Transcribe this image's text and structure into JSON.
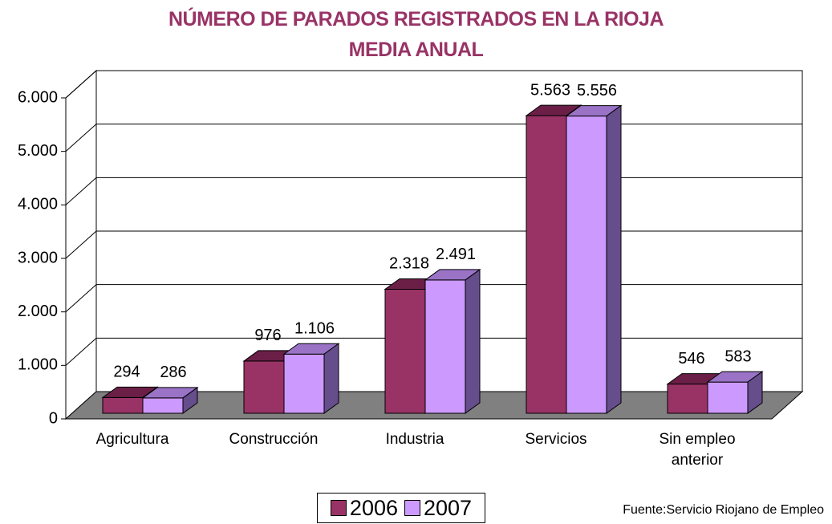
{
  "chart_data": {
    "type": "bar3d",
    "title": [
      "NÚMERO DE PARADOS REGISTRADOS EN LA RIOJA",
      "MEDIA ANUAL"
    ],
    "categories": [
      "Agricultura",
      "Construcción",
      "Industria",
      "Servicios",
      "Sin empleo anterior"
    ],
    "series": [
      {
        "name": "2006",
        "color": "#993366",
        "values": [
          294,
          976,
          2318,
          5563,
          546
        ],
        "value_labels": [
          "294",
          "976",
          "2.318",
          "5.563",
          "546"
        ]
      },
      {
        "name": "2007",
        "color": "#cc99ff",
        "values": [
          286,
          1106,
          2491,
          5556,
          583
        ],
        "value_labels": [
          "286",
          "1.106",
          "2.491",
          "5.556",
          "583"
        ]
      }
    ],
    "ylim": [
      0,
      6000
    ],
    "yticks": [
      0,
      {
        "value": 1000,
        "label": "1.000"
      },
      {
        "value": 2000,
        "label": "2.000"
      },
      {
        "value": 3000,
        "label": "3.000"
      },
      {
        "value": 4000,
        "label": "4.000"
      },
      {
        "value": 5000,
        "label": "5.000"
      },
      {
        "value": 6000,
        "label": "6.000"
      }
    ],
    "grid": true,
    "legend": "bottom",
    "source": "Fuente:Servicio Riojano de Empleo"
  }
}
